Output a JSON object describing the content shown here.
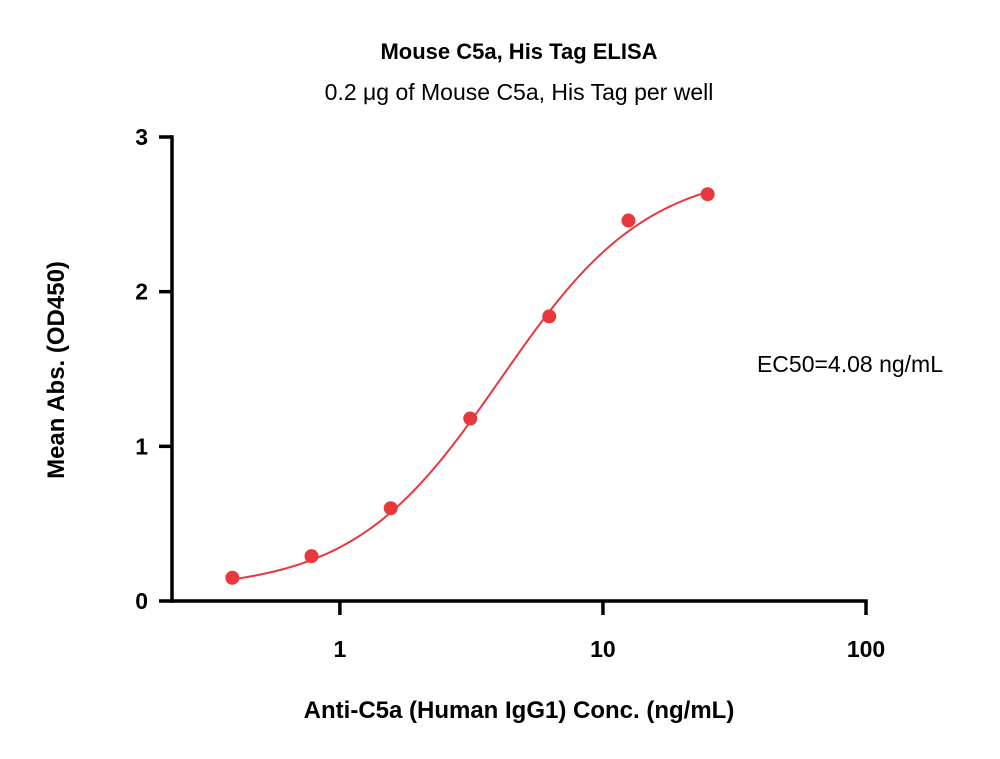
{
  "chart_data": {
    "type": "scatter",
    "title": "Mouse C5a, His Tag ELISA",
    "subtitle": "0.2 μg of Mouse C5a, His Tag per well",
    "xlabel": "Anti-C5a (Human IgG1) Conc. (ng/mL)",
    "ylabel": "Mean Abs. (OD450)",
    "xscale": "log",
    "xlim": [
      0.23,
      100
    ],
    "ylim": [
      0,
      3
    ],
    "xticks": [
      1,
      10,
      100
    ],
    "xtick_labels": [
      "1",
      "10",
      "100"
    ],
    "yticks": [
      0,
      1,
      2,
      3
    ],
    "ytick_labels": [
      "0",
      "1",
      "2",
      "3"
    ],
    "grid": false,
    "annotation": "EC50=4.08 ng/mL",
    "color": "#e8383e",
    "series": [
      {
        "x": [
          0.39,
          0.78,
          1.56,
          3.13,
          6.25,
          12.5,
          25
        ],
        "y": [
          0.15,
          0.29,
          0.6,
          1.18,
          1.84,
          2.46,
          2.63
        ],
        "fit": "4PL sigmoid",
        "ec50": 4.08
      }
    ]
  }
}
